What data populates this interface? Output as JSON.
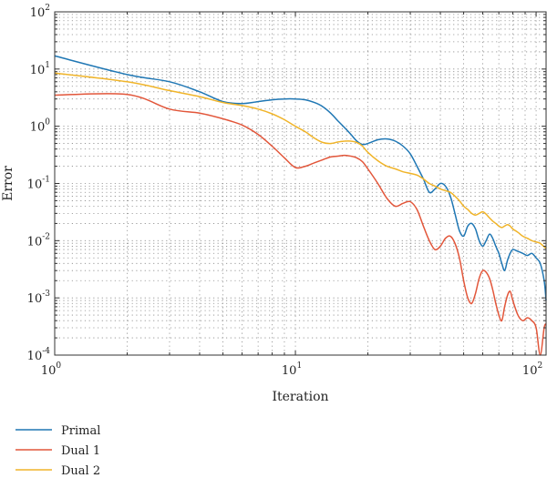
{
  "chart_data": {
    "type": "line",
    "xlabel": "Iteration",
    "ylabel": "Error",
    "xscale": "log",
    "yscale": "log",
    "xlim": [
      1,
      110
    ],
    "ylim": [
      0.0001,
      100
    ],
    "grid": true,
    "legend_position": "bottom-left",
    "x_ticks": [
      {
        "value": 1,
        "base": "10",
        "exp": "0"
      },
      {
        "value": 10,
        "base": "10",
        "exp": "1"
      },
      {
        "value": 100,
        "base": "10",
        "exp": "2"
      }
    ],
    "y_ticks": [
      {
        "value": 0.0001,
        "base": "10",
        "exp": "-4"
      },
      {
        "value": 0.001,
        "base": "10",
        "exp": "-3"
      },
      {
        "value": 0.01,
        "base": "10",
        "exp": "-2"
      },
      {
        "value": 0.1,
        "base": "10",
        "exp": "-1"
      },
      {
        "value": 1,
        "base": "10",
        "exp": "0"
      },
      {
        "value": 10,
        "base": "10",
        "exp": "1"
      },
      {
        "value": 100,
        "base": "10",
        "exp": "2"
      }
    ],
    "series": [
      {
        "name": "Primal",
        "color": "#1f77b4",
        "x": [
          1,
          2,
          3,
          4,
          5,
          6,
          7,
          8,
          9,
          10,
          11,
          12,
          13,
          14,
          15,
          16,
          17,
          18,
          19,
          20,
          22,
          24,
          26,
          28,
          30,
          32,
          34,
          36,
          38,
          40,
          42,
          44,
          46,
          48,
          50,
          52,
          54,
          56,
          58,
          60,
          62,
          64,
          66,
          68,
          70,
          72,
          74,
          76,
          78,
          80,
          84,
          88,
          92,
          96,
          100,
          104,
          108,
          110
        ],
        "y": [
          17,
          8,
          6,
          4,
          2.7,
          2.5,
          2.7,
          2.9,
          3.0,
          3.0,
          2.9,
          2.6,
          2.2,
          1.7,
          1.25,
          0.95,
          0.72,
          0.55,
          0.48,
          0.5,
          0.58,
          0.6,
          0.55,
          0.45,
          0.33,
          0.2,
          0.12,
          0.07,
          0.08,
          0.1,
          0.09,
          0.06,
          0.03,
          0.015,
          0.012,
          0.018,
          0.02,
          0.016,
          0.01,
          0.008,
          0.01,
          0.013,
          0.011,
          0.008,
          0.006,
          0.004,
          0.003,
          0.0045,
          0.006,
          0.007,
          0.0065,
          0.006,
          0.0055,
          0.006,
          0.005,
          0.004,
          0.002,
          0.0009
        ]
      },
      {
        "name": "Dual 1",
        "color": "#e2563a",
        "x": [
          1,
          2,
          3,
          4,
          5,
          6,
          7,
          8,
          9,
          10,
          11,
          12,
          13,
          14,
          15,
          16,
          17,
          18,
          19,
          20,
          22,
          24,
          26,
          28,
          30,
          32,
          34,
          36,
          38,
          40,
          42,
          44,
          46,
          48,
          50,
          52,
          54,
          56,
          58,
          60,
          62,
          64,
          66,
          68,
          70,
          72,
          74,
          76,
          78,
          80,
          84,
          88,
          92,
          96,
          100,
          104,
          108,
          110
        ],
        "y": [
          3.5,
          3.6,
          2.0,
          1.7,
          1.35,
          1.05,
          0.72,
          0.45,
          0.28,
          0.19,
          0.2,
          0.23,
          0.26,
          0.29,
          0.3,
          0.31,
          0.3,
          0.28,
          0.24,
          0.18,
          0.1,
          0.055,
          0.04,
          0.045,
          0.048,
          0.035,
          0.018,
          0.01,
          0.007,
          0.008,
          0.011,
          0.012,
          0.009,
          0.005,
          0.002,
          0.001,
          0.0008,
          0.0012,
          0.0022,
          0.003,
          0.0028,
          0.0022,
          0.0014,
          0.0008,
          0.0005,
          0.0004,
          0.0007,
          0.0011,
          0.0013,
          0.0009,
          0.0005,
          0.0004,
          0.00045,
          0.0004,
          0.0003,
          0.0001,
          0.0003,
          0.00035
        ]
      },
      {
        "name": "Dual 2",
        "color": "#f0b429",
        "x": [
          1,
          2,
          3,
          4,
          5,
          6,
          7,
          8,
          9,
          10,
          11,
          12,
          13,
          14,
          15,
          16,
          17,
          18,
          19,
          20,
          22,
          24,
          26,
          28,
          30,
          32,
          34,
          36,
          38,
          40,
          42,
          44,
          46,
          48,
          50,
          52,
          54,
          56,
          58,
          60,
          62,
          64,
          66,
          68,
          70,
          72,
          74,
          76,
          78,
          80,
          84,
          88,
          92,
          96,
          100,
          104,
          108,
          110
        ],
        "y": [
          8.5,
          6.0,
          4.2,
          3.3,
          2.6,
          2.3,
          2.0,
          1.65,
          1.3,
          1.0,
          0.8,
          0.62,
          0.52,
          0.5,
          0.53,
          0.55,
          0.55,
          0.52,
          0.45,
          0.35,
          0.25,
          0.2,
          0.18,
          0.16,
          0.15,
          0.14,
          0.12,
          0.1,
          0.09,
          0.08,
          0.075,
          0.07,
          0.06,
          0.05,
          0.04,
          0.035,
          0.03,
          0.028,
          0.03,
          0.032,
          0.029,
          0.025,
          0.022,
          0.02,
          0.018,
          0.017,
          0.018,
          0.019,
          0.018,
          0.016,
          0.014,
          0.012,
          0.011,
          0.01,
          0.0095,
          0.009,
          0.0078,
          0.0073
        ]
      }
    ]
  }
}
